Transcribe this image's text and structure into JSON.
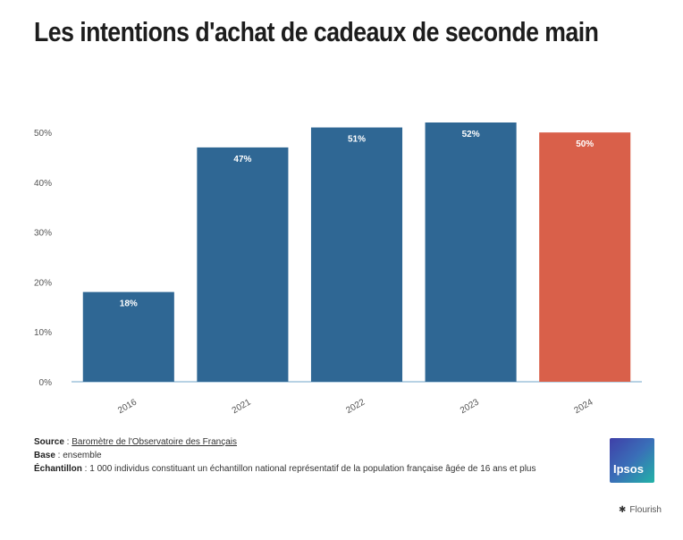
{
  "title": "Les intentions d'achat de cadeaux de seconde main",
  "chart_data": {
    "type": "bar",
    "categories": [
      "2016",
      "2021",
      "2022",
      "2023",
      "2024"
    ],
    "values": [
      18,
      47,
      51,
      52,
      50
    ],
    "value_labels": [
      "18%",
      "47%",
      "51%",
      "52%",
      "50%"
    ],
    "colors": [
      "#2f6794",
      "#2f6794",
      "#2f6794",
      "#2f6794",
      "#d9604a"
    ],
    "y_ticks": [
      0,
      10,
      20,
      30,
      40,
      50
    ],
    "y_tick_labels": [
      "0%",
      "10%",
      "20%",
      "30%",
      "40%",
      "50%"
    ],
    "ylim": [
      0,
      52
    ],
    "grid": false
  },
  "footer": {
    "source_label": "Source",
    "source_value": "Baromètre de l'Observatoire des Français",
    "base_label": "Base",
    "base_value": "ensemble",
    "sample_label": "Échantillon",
    "sample_value": "1 000 individus constituant un échantillon national représentatif de la population française âgée de 16 ans et plus"
  },
  "logo": {
    "text": "Ipsos",
    "icon": "brand-logo"
  },
  "credit": {
    "text": "Flourish",
    "icon": "flourish-icon"
  }
}
